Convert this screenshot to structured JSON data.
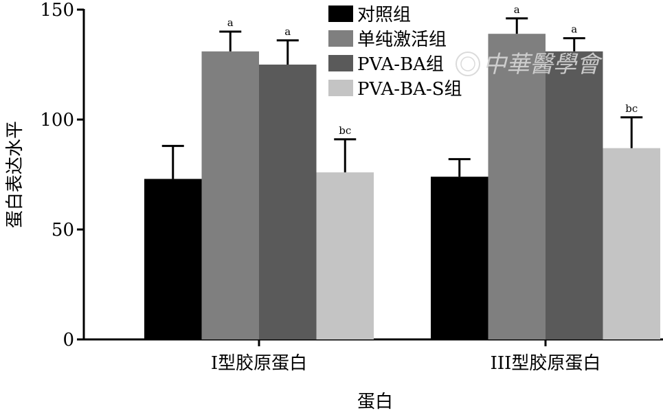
{
  "chart_data": {
    "type": "bar",
    "categories": [
      "Ⅰ型胶原蛋白",
      "III型胶原蛋白"
    ],
    "series": [
      {
        "name": "对照组",
        "color": "#000000",
        "values": [
          73,
          74
        ],
        "errors": [
          15,
          8
        ],
        "labels": [
          "",
          ""
        ]
      },
      {
        "name": "单纯激活组",
        "color": "#7f7f7f",
        "values": [
          131,
          139
        ],
        "errors": [
          9,
          7
        ],
        "labels": [
          "a",
          "a"
        ]
      },
      {
        "name": "PVA-BA组",
        "color": "#5a5a5a",
        "values": [
          125,
          131
        ],
        "errors": [
          11,
          6
        ],
        "labels": [
          "a",
          "a"
        ]
      },
      {
        "name": "PVA-BA-S组",
        "color": "#c4c4c4",
        "values": [
          76,
          87
        ],
        "errors": [
          15,
          14
        ],
        "labels": [
          "bc",
          "bc"
        ]
      }
    ],
    "xlabel": "蛋白",
    "ylabel": "蛋白表达水平",
    "ylim": [
      0,
      150
    ],
    "yticks": [
      0,
      50,
      100,
      150
    ],
    "legend": "top-center",
    "grid": false
  },
  "watermark": {
    "text": "中華醫學會"
  }
}
